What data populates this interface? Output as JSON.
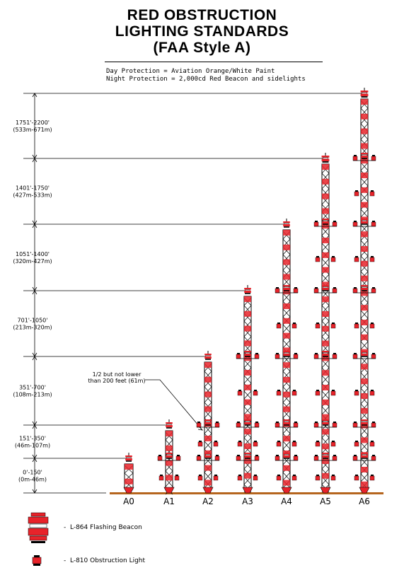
{
  "title": {
    "line1": "RED OBSTRUCTION",
    "line2": "LIGHTING STANDARDS",
    "line3": "(FAA Style A)"
  },
  "subtitle": {
    "day": "Day Protection = Aviation Orange/White Paint",
    "night": "Night Protection = 2,000cd Red Beacon and sidelights"
  },
  "height_bands": [
    {
      "feet": "1751'-2200'",
      "meters": "(533m-671m)"
    },
    {
      "feet": "1401'-1750'",
      "meters": "(427m-533m)"
    },
    {
      "feet": "1051'-1400'",
      "meters": "(320m-427m)"
    },
    {
      "feet": "701'-1050'",
      "meters": "(213m-320m)"
    },
    {
      "feet": "351'-700'",
      "meters": "(108m-213m)"
    },
    {
      "feet": "151'-350'",
      "meters": "(46m-107m)"
    },
    {
      "feet": "0'-150'",
      "meters": "(0m-46m)"
    }
  ],
  "towers": [
    {
      "label": "A0"
    },
    {
      "label": "A1"
    },
    {
      "label": "A2"
    },
    {
      "label": "A3"
    },
    {
      "label": "A4"
    },
    {
      "label": "A5"
    },
    {
      "label": "A6"
    }
  ],
  "annotation": {
    "line1": "1/2 but not lower",
    "line2": "than 200 feet (61m)"
  },
  "legend": {
    "beacon": "-  L-864 Flashing Beacon",
    "obstruction": "-  L-810 Obstruction Light"
  },
  "colors": {
    "light_red": "#e8232a",
    "lattice": "#000000",
    "ground": "#b5651d"
  }
}
